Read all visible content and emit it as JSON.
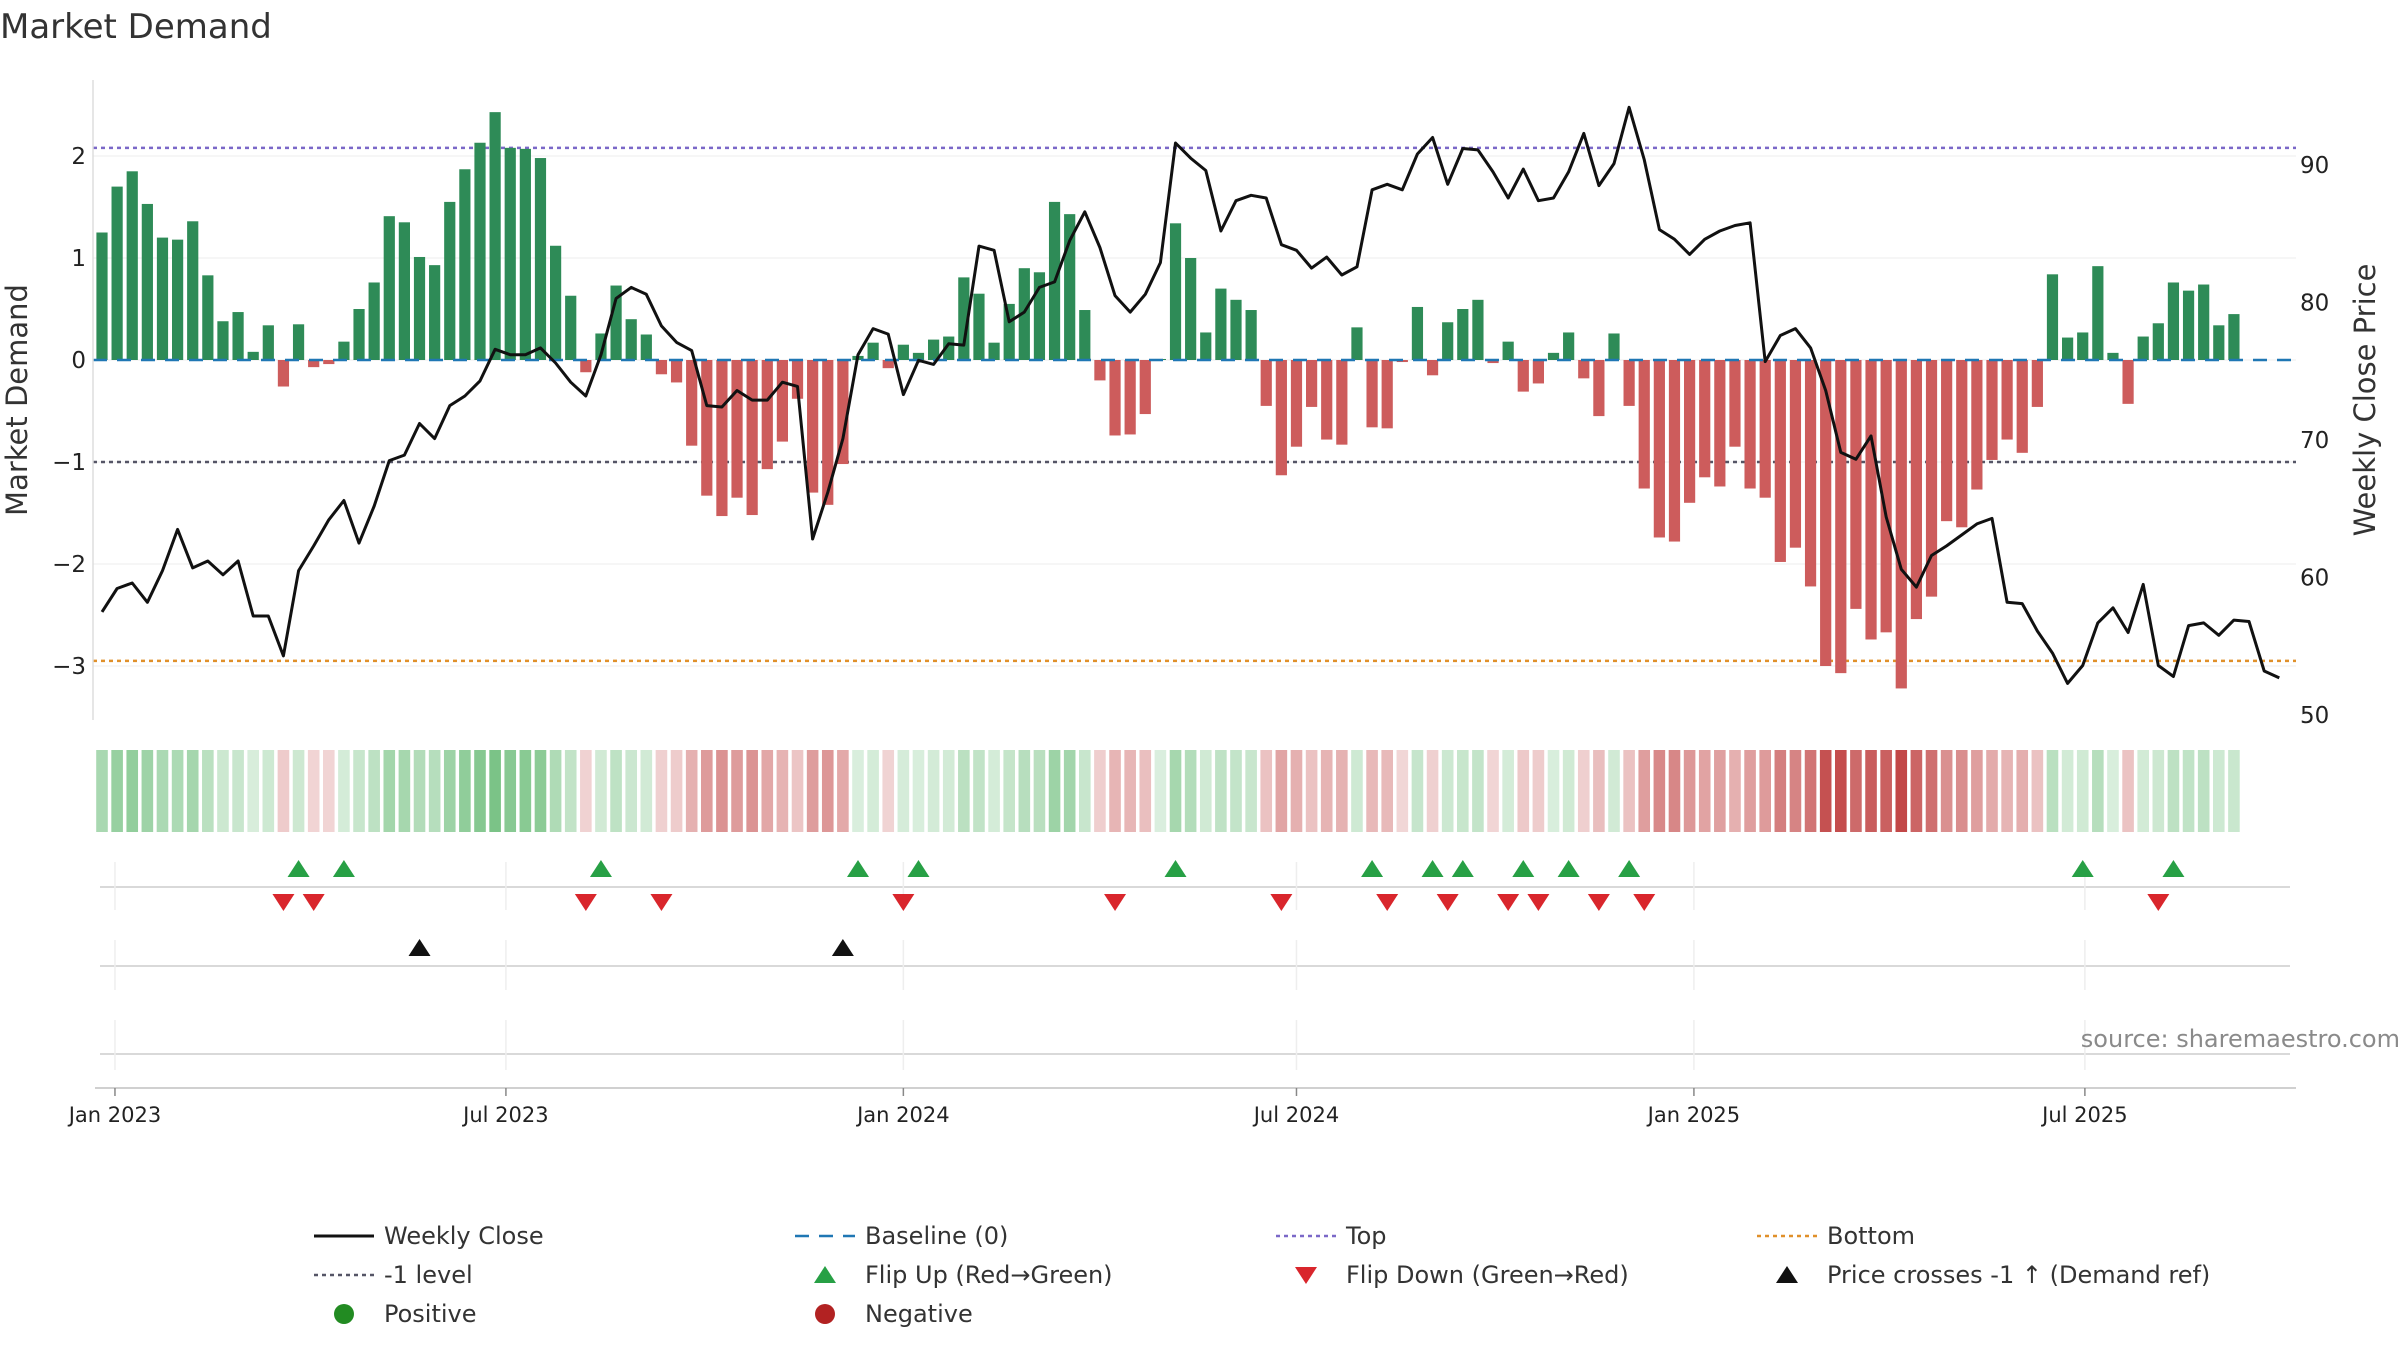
{
  "chart_data": {
    "type": "bar",
    "title": "Market Demand",
    "ylabel": "Market Demand",
    "y2label": "Weekly Close Price",
    "ylim": [
      -3.5,
      2.75
    ],
    "y2lim": [
      50,
      95
    ],
    "yticks": [
      "2",
      "1",
      "0",
      "−1",
      "−2",
      "−3"
    ],
    "y2ticks": [
      "90",
      "80",
      "70",
      "60",
      "50"
    ],
    "levels": {
      "top": 2.08,
      "minus_one": -1.0,
      "bottom": -2.95,
      "baseline": 0
    },
    "start_date": "2022-12-26",
    "x_ticks": [
      {
        "date": "2023-01-01",
        "label": "Jan 2023"
      },
      {
        "date": "2023-07-01",
        "label": "Jul 2023"
      },
      {
        "date": "2024-01-01",
        "label": "Jan 2024"
      },
      {
        "date": "2024-07-01",
        "label": "Jul 2024"
      },
      {
        "date": "2025-01-01",
        "label": "Jan 2025"
      },
      {
        "date": "2025-07-01",
        "label": "Jul 2025"
      }
    ],
    "demand": [
      1.25,
      1.7,
      1.85,
      1.53,
      1.2,
      1.18,
      1.36,
      0.83,
      0.38,
      0.47,
      0.08,
      0.34,
      -0.26,
      0.35,
      -0.07,
      -0.04,
      0.18,
      0.5,
      0.76,
      1.41,
      1.35,
      1.01,
      0.93,
      1.55,
      1.87,
      2.13,
      2.43,
      2.08,
      2.07,
      1.98,
      1.12,
      0.63,
      -0.12,
      0.26,
      0.73,
      0.4,
      0.25,
      -0.14,
      -0.22,
      -0.84,
      -1.33,
      -1.53,
      -1.35,
      -1.52,
      -1.07,
      -0.8,
      -0.38,
      -1.3,
      -1.42,
      -1.02,
      0.04,
      0.17,
      -0.08,
      0.15,
      0.07,
      0.2,
      0.23,
      0.81,
      0.65,
      0.17,
      0.55,
      0.9,
      0.86,
      1.55,
      1.43,
      0.49,
      -0.2,
      -0.74,
      -0.73,
      -0.53,
      0.01,
      1.34,
      1.0,
      0.27,
      0.7,
      0.59,
      0.49,
      -0.45,
      -1.13,
      -0.85,
      -0.46,
      -0.78,
      -0.83,
      0.32,
      -0.66,
      -0.67,
      -0.02,
      0.52,
      -0.15,
      0.37,
      0.5,
      0.59,
      -0.03,
      0.18,
      -0.31,
      -0.23,
      0.07,
      0.27,
      -0.18,
      -0.55,
      0.26,
      -0.45,
      -1.26,
      -1.74,
      -1.78,
      -1.4,
      -1.15,
      -1.24,
      -0.85,
      -1.26,
      -1.35,
      -1.98,
      -1.84,
      -2.22,
      -3.0,
      -3.07,
      -2.44,
      -2.74,
      -2.67,
      -3.22,
      -2.54,
      -2.32,
      -1.58,
      -1.64,
      -1.27,
      -0.98,
      -0.78,
      -0.91,
      -0.46,
      0.84,
      0.22,
      0.27,
      0.92,
      0.07,
      -0.43,
      0.23,
      0.36,
      0.76,
      0.68,
      0.74,
      0.34,
      0.45
    ],
    "price": [
      57.5,
      59.2,
      59.6,
      58.2,
      60.5,
      63.5,
      60.7,
      61.2,
      60.2,
      61.2,
      57.2,
      57.2,
      54.3,
      60.5,
      62.3,
      64.2,
      65.6,
      62.5,
      65.2,
      68.5,
      68.9,
      71.2,
      70.1,
      72.5,
      73.2,
      74.3,
      76.6,
      76.2,
      76.2,
      76.7,
      75.6,
      74.2,
      73.2,
      76.2,
      80.3,
      81.1,
      80.6,
      78.3,
      77.1,
      76.5,
      72.5,
      72.4,
      73.6,
      72.9,
      72.9,
      74.2,
      73.9,
      62.8,
      66.2,
      70.1,
      76.2,
      78.1,
      77.7,
      73.3,
      75.8,
      75.5,
      77.0,
      76.9,
      84.1,
      83.8,
      78.6,
      79.3,
      81.1,
      81.5,
      84.5,
      86.6,
      84.0,
      80.5,
      79.3,
      80.6,
      82.9,
      91.6,
      90.5,
      89.6,
      85.2,
      87.4,
      87.8,
      87.6,
      84.2,
      83.8,
      82.5,
      83.3,
      82.0,
      82.6,
      88.2,
      88.6,
      88.2,
      90.8,
      92.0,
      88.6,
      91.2,
      91.1,
      89.5,
      87.6,
      89.7,
      87.4,
      87.6,
      89.5,
      92.3,
      88.5,
      90.1,
      94.2,
      90.4,
      85.3,
      84.6,
      83.5,
      84.6,
      85.2,
      85.6,
      85.8,
      75.7,
      77.6,
      78.1,
      76.7,
      73.6,
      69.1,
      68.6,
      70.3,
      64.4,
      60.6,
      59.3,
      61.6,
      62.3,
      63.1,
      63.9,
      64.3,
      58.2,
      58.1,
      56.1,
      54.5,
      52.3,
      53.6,
      56.7,
      57.8,
      56.0,
      59.5,
      53.6,
      52.8,
      56.5,
      56.7,
      55.8,
      56.9,
      56.8,
      53.2,
      52.7
    ],
    "flip_up_weeks": [
      13,
      16,
      33,
      50,
      54,
      71,
      84,
      88,
      90,
      94,
      97,
      101,
      131,
      137
    ],
    "flip_down_weeks": [
      12,
      14,
      32,
      37,
      53,
      67,
      78,
      85,
      89,
      93,
      95,
      99,
      102,
      136
    ],
    "price_cross_weeks": [
      21,
      49
    ],
    "colors": {
      "positive_bar": "#2e8b57",
      "negative_bar": "#cd5c5c",
      "price_line": "#111111",
      "baseline": "#1f77b4",
      "top": "#7b68c8",
      "minus_one": "#555566",
      "bottom": "#e0902a",
      "flip_up": "#27a045",
      "flip_down": "#d9262c",
      "cross": "#111111",
      "positive_dot": "#228b22",
      "negative_dot": "#b22222"
    },
    "legend": [
      {
        "label": "Weekly Close",
        "kind": "line"
      },
      {
        "label": "Baseline (0)",
        "kind": "baseline"
      },
      {
        "label": "Top",
        "kind": "top"
      },
      {
        "label": "Bottom",
        "kind": "bottom"
      },
      {
        "label": "-1 level",
        "kind": "minus_one"
      },
      {
        "label": "Flip Up (Red→Green)",
        "kind": "flip_up"
      },
      {
        "label": "Flip Down (Green→Red)",
        "kind": "flip_down"
      },
      {
        "label": "Price crosses -1 ↑ (Demand ref)",
        "kind": "cross"
      },
      {
        "label": "Positive",
        "kind": "positive_dot"
      },
      {
        "label": "Negative",
        "kind": "negative_dot"
      }
    ],
    "source": "source: sharemaestro.com"
  }
}
